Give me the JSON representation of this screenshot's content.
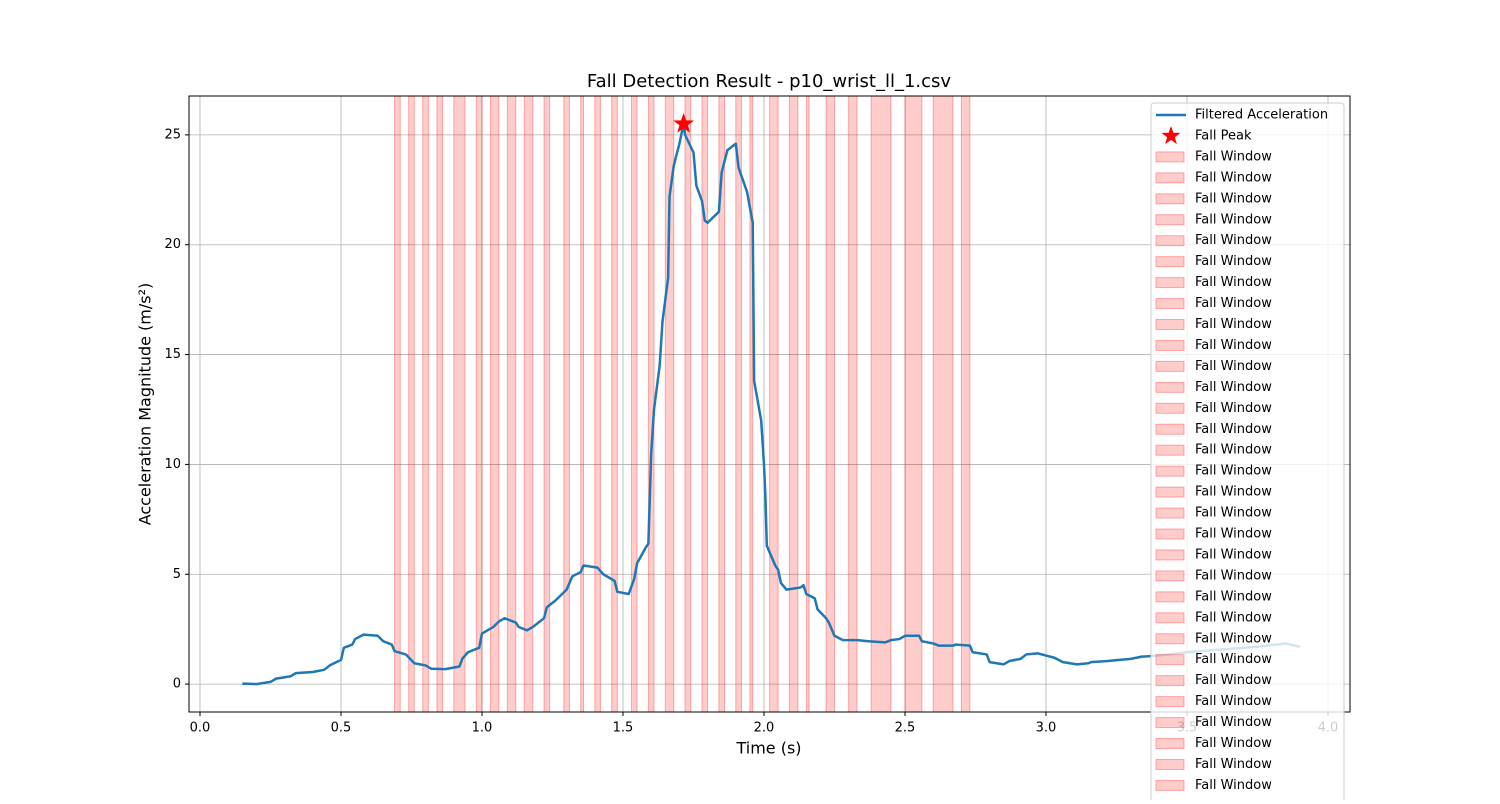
{
  "chart_data": {
    "type": "line",
    "title": "Fall Detection Result - p10_wrist_ll_1.csv",
    "x_label": "Time (s)",
    "y_label": "Acceleration Magnitude (m/s²)",
    "xlim": [
      -0.039,
      4.078
    ],
    "ylim": [
      -1.27,
      26.77
    ],
    "xticks": [
      {
        "value": 0,
        "label": "0.0"
      },
      0.5,
      {
        "value": 1,
        "label": "1.0"
      },
      1.5,
      {
        "value": 2,
        "label": "2.0"
      },
      2.5,
      {
        "value": 3,
        "label": "3.0"
      },
      3.5,
      {
        "value": 4,
        "label": "4.0"
      }
    ],
    "yticks": [
      0,
      5,
      10,
      15,
      20,
      25
    ],
    "grid": true,
    "legend": "upper right",
    "series": [
      {
        "name": "Filtered Acceleration",
        "color": "#1f77b4",
        "x": [
          0.15,
          0.2,
          0.25,
          0.27,
          0.32,
          0.34,
          0.4,
          0.44,
          0.46,
          0.5,
          0.51,
          0.54,
          0.55,
          0.58,
          0.63,
          0.65,
          0.68,
          0.69,
          0.73,
          0.76,
          0.8,
          0.82,
          0.87,
          0.92,
          0.93,
          0.95,
          0.99,
          1.0,
          1.04,
          1.06,
          1.08,
          1.12,
          1.13,
          1.16,
          1.18,
          1.2,
          1.22,
          1.23,
          1.26,
          1.3,
          1.32,
          1.35,
          1.36,
          1.41,
          1.43,
          1.47,
          1.48,
          1.52,
          1.54,
          1.55,
          1.58,
          1.59,
          1.6,
          1.61,
          1.63,
          1.64,
          1.66,
          1.665,
          1.68,
          1.7,
          1.715,
          1.72,
          1.75,
          1.76,
          1.78,
          1.79,
          1.8,
          1.84,
          1.85,
          1.87,
          1.9,
          1.91,
          1.94,
          1.96,
          1.965,
          1.99,
          2.0,
          2.005,
          2.01,
          2.04,
          2.05,
          2.06,
          2.08,
          2.13,
          2.14,
          2.15,
          2.18,
          2.19,
          2.22,
          2.23,
          2.25,
          2.28,
          2.33,
          2.37,
          2.43,
          2.45,
          2.48,
          2.5,
          2.55,
          2.56,
          2.6,
          2.62,
          2.67,
          2.68,
          2.73,
          2.74,
          2.79,
          2.8,
          2.85,
          2.87,
          2.91,
          2.93,
          2.97,
          3.0,
          3.03,
          3.06,
          3.11,
          3.15,
          3.16,
          3.22,
          3.26,
          3.3,
          3.34,
          3.4,
          3.5,
          3.6,
          3.75,
          3.85,
          3.9
        ],
        "values": [
          0.02,
          0,
          0.1,
          0.25,
          0.35,
          0.5,
          0.55,
          0.65,
          0.85,
          1.1,
          1.65,
          1.8,
          2.05,
          2.25,
          2.2,
          1.95,
          1.8,
          1.5,
          1.35,
          0.95,
          0.85,
          0.7,
          0.68,
          0.8,
          1.15,
          1.45,
          1.65,
          2.3,
          2.6,
          2.85,
          3.0,
          2.8,
          2.6,
          2.45,
          2.6,
          2.8,
          3.0,
          3.5,
          3.8,
          4.3,
          4.9,
          5.1,
          5.4,
          5.3,
          5.0,
          4.7,
          4.2,
          4.1,
          4.8,
          5.5,
          6.2,
          6.4,
          10.5,
          12.5,
          14.5,
          16.5,
          18.5,
          22.2,
          23.6,
          24.6,
          25.5,
          25.0,
          24.2,
          22.7,
          22,
          21.1,
          21.0,
          21.5,
          23.3,
          24.3,
          24.6,
          23.5,
          22.4,
          21,
          13.8,
          12.0,
          10,
          8.5,
          6.3,
          5.4,
          5.2,
          4.6,
          4.3,
          4.4,
          4.5,
          4.1,
          3.9,
          3.4,
          3.0,
          2.8,
          2.2,
          2.0,
          2.0,
          1.95,
          1.9,
          2.0,
          2.05,
          2.2,
          2.2,
          1.95,
          1.85,
          1.75,
          1.75,
          1.8,
          1.75,
          1.45,
          1.35,
          1.0,
          0.9,
          1.05,
          1.15,
          1.35,
          1.4,
          1.3,
          1.2,
          1.0,
          0.9,
          0.95,
          1.0,
          1.05,
          1.1,
          1.15,
          1.25,
          1.3,
          1.45,
          1.55,
          1.7,
          1.85,
          1.7
        ]
      }
    ],
    "peak": {
      "name": "Fall Peak",
      "color": "#ff0000",
      "x": 1.715,
      "value": 25.5
    },
    "windows": [
      {
        "name": "Fall Window",
        "start": 0.69,
        "end": 0.71
      },
      {
        "name": "Fall Window",
        "start": 0.74,
        "end": 0.76
      },
      {
        "name": "Fall Window",
        "start": 0.79,
        "end": 0.81
      },
      {
        "name": "Fall Window",
        "start": 0.84,
        "end": 0.86
      },
      {
        "name": "Fall Window",
        "start": 0.9,
        "end": 0.94
      },
      {
        "name": "Fall Window",
        "start": 0.98,
        "end": 1.0
      },
      {
        "name": "Fall Window",
        "start": 1.03,
        "end": 1.06
      },
      {
        "name": "Fall Window",
        "start": 1.09,
        "end": 1.12
      },
      {
        "name": "Fall Window",
        "start": 1.15,
        "end": 1.18
      },
      {
        "name": "Fall Window",
        "start": 1.22,
        "end": 1.24
      },
      {
        "name": "Fall Window",
        "start": 1.29,
        "end": 1.31
      },
      {
        "name": "Fall Window",
        "start": 1.35,
        "end": 1.36
      },
      {
        "name": "Fall Window",
        "start": 1.4,
        "end": 1.42
      },
      {
        "name": "Fall Window",
        "start": 1.46,
        "end": 1.48
      },
      {
        "name": "Fall Window",
        "start": 1.53,
        "end": 1.55
      },
      {
        "name": "Fall Window",
        "start": 1.59,
        "end": 1.61
      },
      {
        "name": "Fall Window",
        "start": 1.65,
        "end": 1.68
      },
      {
        "name": "Fall Window",
        "start": 1.72,
        "end": 1.74
      },
      {
        "name": "Fall Window",
        "start": 1.78,
        "end": 1.8
      },
      {
        "name": "Fall Window",
        "start": 1.84,
        "end": 1.86
      },
      {
        "name": "Fall Window",
        "start": 1.9,
        "end": 1.92
      },
      {
        "name": "Fall Window",
        "start": 1.95,
        "end": 1.96
      },
      {
        "name": "Fall Window",
        "start": 2.02,
        "end": 2.05
      },
      {
        "name": "Fall Window",
        "start": 2.09,
        "end": 2.12
      },
      {
        "name": "Fall Window",
        "start": 2.15,
        "end": 2.16
      },
      {
        "name": "Fall Window",
        "start": 2.22,
        "end": 2.25
      },
      {
        "name": "Fall Window",
        "start": 2.3,
        "end": 2.33
      },
      {
        "name": "Fall Window",
        "start": 2.38,
        "end": 2.45
      },
      {
        "name": "Fall Window",
        "start": 2.5,
        "end": 2.56
      },
      {
        "name": "Fall Window",
        "start": 2.6,
        "end": 2.67
      },
      {
        "name": "Fall Window",
        "start": 2.7,
        "end": 2.73
      }
    ],
    "window_color": "#ff0000"
  }
}
